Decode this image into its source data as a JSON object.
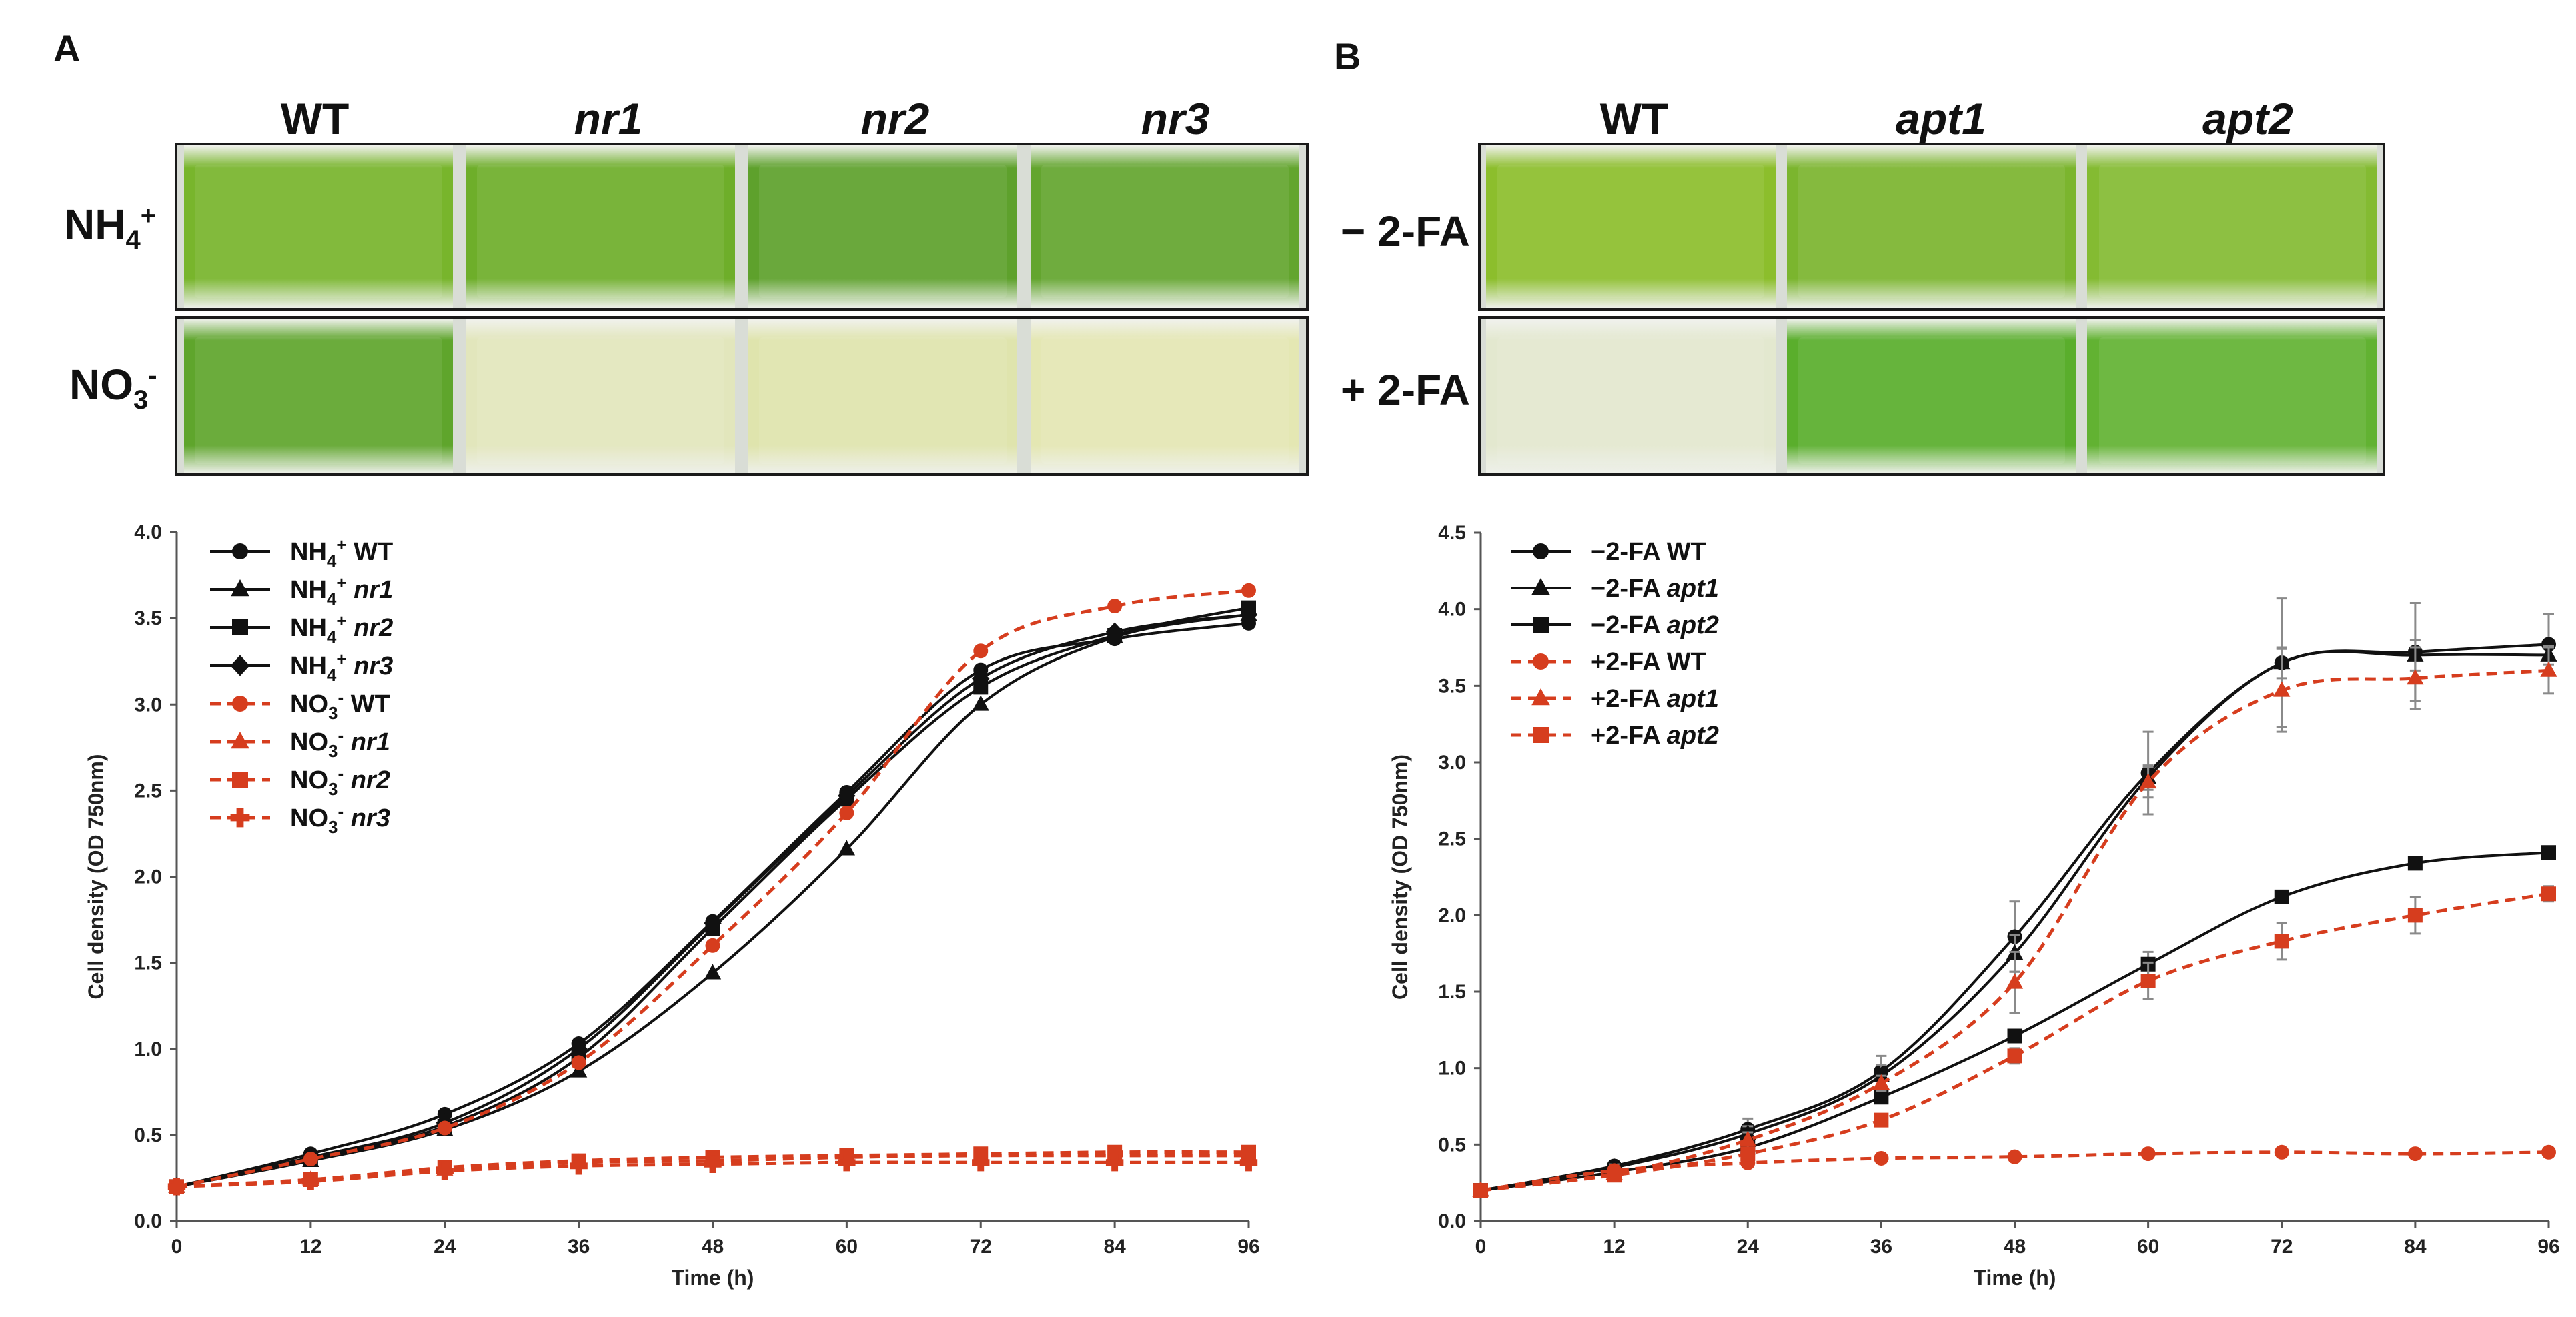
{
  "panel_a": {
    "label": "A",
    "columns": [
      "WT",
      "nr1",
      "nr2",
      "nr3"
    ],
    "rows": [
      {
        "base": "NH",
        "sub": "4",
        "sup": "+"
      },
      {
        "base": "NO",
        "sub": "3",
        "sup": "-"
      }
    ],
    "well_colors": [
      [
        "#78b52c",
        "#6eae2a",
        "#5ea12c",
        "#63a52e"
      ],
      [
        "#5fa52c",
        "#e2e6bc",
        "#dfe4ad",
        "#e4e7b3"
      ]
    ]
  },
  "panel_b": {
    "label": "B",
    "columns": [
      "WT",
      "apt1",
      "apt2"
    ],
    "rows": [
      "− 2-FA",
      "+ 2-FA"
    ],
    "well_colors": [
      [
        "#8cbe2c",
        "#7bb52e",
        "#84bb32"
      ],
      [
        "#e3e8cf",
        "#5aae2c",
        "#62b232"
      ]
    ]
  },
  "chart_data": [
    {
      "type": "line",
      "panel": "A",
      "xlabel": "Time (h)",
      "ylabel": "Cell density (OD 750nm)",
      "xlim": [
        0,
        96
      ],
      "ylim": [
        0,
        4.0
      ],
      "xticks": [
        "0",
        "12",
        "24",
        "36",
        "48",
        "60",
        "72",
        "84",
        "96"
      ],
      "yticks": [
        "0.0",
        "0.5",
        "1.0",
        "1.5",
        "2.0",
        "2.5",
        "3.0",
        "3.5",
        "4.0"
      ],
      "x": [
        0,
        12,
        24,
        36,
        48,
        60,
        72,
        84,
        96
      ],
      "legend": "top-left",
      "series": [
        {
          "name": "NH4+ WT",
          "prefix": "NH",
          "sub": "4",
          "sup": "+",
          "strain": "WT",
          "italic": false,
          "marker": "circle",
          "color": "#111111",
          "dashed": false,
          "values": [
            0.2,
            0.39,
            0.62,
            1.03,
            1.74,
            2.49,
            3.2,
            3.38,
            3.47
          ]
        },
        {
          "name": "NH4+ nr1",
          "prefix": "NH",
          "sub": "4",
          "sup": "+",
          "strain": "nr1",
          "italic": true,
          "marker": "triangle",
          "color": "#111111",
          "dashed": false,
          "values": [
            0.2,
            0.35,
            0.53,
            0.87,
            1.44,
            2.16,
            3.0,
            3.39,
            3.52
          ]
        },
        {
          "name": "NH4+ nr2",
          "prefix": "NH",
          "sub": "4",
          "sup": "+",
          "strain": "nr2",
          "italic": true,
          "marker": "square",
          "color": "#111111",
          "dashed": false,
          "values": [
            0.2,
            0.36,
            0.55,
            0.95,
            1.7,
            2.45,
            3.1,
            3.4,
            3.56
          ]
        },
        {
          "name": "NH4+ nr3",
          "prefix": "NH",
          "sub": "4",
          "sup": "+",
          "strain": "nr3",
          "italic": true,
          "marker": "diamond",
          "color": "#111111",
          "dashed": false,
          "values": [
            0.2,
            0.37,
            0.57,
            1.0,
            1.73,
            2.47,
            3.15,
            3.42,
            3.52
          ]
        },
        {
          "name": "NO3- WT",
          "prefix": "NO",
          "sub": "3",
          "sup": "-",
          "strain": "WT",
          "italic": false,
          "marker": "circle",
          "color": "#d63d1e",
          "dashed": true,
          "values": [
            0.2,
            0.36,
            0.54,
            0.92,
            1.6,
            2.37,
            3.31,
            3.57,
            3.66
          ]
        },
        {
          "name": "NO3- nr1",
          "prefix": "NO",
          "sub": "3",
          "sup": "-",
          "strain": "nr1",
          "italic": true,
          "marker": "triangle",
          "color": "#d63d1e",
          "dashed": true,
          "values": [
            0.2,
            0.24,
            0.3,
            0.34,
            0.35,
            0.37,
            0.38,
            0.38,
            0.38
          ]
        },
        {
          "name": "NO3- nr2",
          "prefix": "NO",
          "sub": "3",
          "sup": "-",
          "strain": "nr2",
          "italic": true,
          "marker": "square",
          "color": "#d63d1e",
          "dashed": true,
          "values": [
            0.2,
            0.24,
            0.31,
            0.35,
            0.37,
            0.38,
            0.39,
            0.4,
            0.4
          ]
        },
        {
          "name": "NO3- nr3",
          "prefix": "NO",
          "sub": "3",
          "sup": "-",
          "strain": "nr3",
          "italic": true,
          "marker": "cross",
          "color": "#d63d1e",
          "dashed": true,
          "values": [
            0.2,
            0.23,
            0.29,
            0.32,
            0.33,
            0.34,
            0.34,
            0.34,
            0.34
          ]
        }
      ]
    },
    {
      "type": "line",
      "panel": "B",
      "xlabel": "Time (h)",
      "ylabel": "Cell density (OD 750nm)",
      "xlim": [
        0,
        96
      ],
      "ylim": [
        0,
        4.5
      ],
      "xticks": [
        "0",
        "12",
        "24",
        "36",
        "48",
        "60",
        "72",
        "84",
        "96"
      ],
      "yticks": [
        "0.0",
        "0.5",
        "1.0",
        "1.5",
        "2.0",
        "2.5",
        "3.0",
        "3.5",
        "4.0",
        "4.5"
      ],
      "x": [
        0,
        12,
        24,
        36,
        48,
        60,
        72,
        84,
        96
      ],
      "legend": "top-left",
      "series": [
        {
          "name": "−2-FA WT",
          "prefix": "−2-FA",
          "strain": "WT",
          "italic": false,
          "marker": "circle",
          "color": "#111111",
          "dashed": false,
          "values": [
            0.2,
            0.36,
            0.6,
            0.98,
            1.86,
            2.93,
            3.65,
            3.72,
            3.77
          ],
          "errors": [
            0,
            0.02,
            0.07,
            0.1,
            0.23,
            0.27,
            0.42,
            0.32,
            0.2
          ]
        },
        {
          "name": "−2-FA apt1",
          "prefix": "−2-FA",
          "strain": "apt1",
          "italic": true,
          "marker": "triangle",
          "color": "#111111",
          "dashed": false,
          "values": [
            0.2,
            0.35,
            0.57,
            0.95,
            1.75,
            2.9,
            3.65,
            3.7,
            3.7
          ],
          "errors": [
            0,
            0.02,
            0.05,
            0.07,
            0.12,
            0.08,
            0.1,
            0.1,
            0.06
          ]
        },
        {
          "name": "−2-FA apt2",
          "prefix": "−2-FA",
          "strain": "apt2",
          "italic": true,
          "marker": "square",
          "color": "#111111",
          "dashed": false,
          "values": [
            0.2,
            0.32,
            0.48,
            0.81,
            1.21,
            1.68,
            2.12,
            2.34,
            2.41
          ],
          "errors": [
            0,
            0.02,
            0.03,
            0.04,
            0.04,
            0.08,
            0.04,
            0.04,
            0.04
          ]
        },
        {
          "name": "+2-FA WT",
          "prefix": "+2-FA",
          "strain": "WT",
          "italic": false,
          "marker": "circle",
          "color": "#d63d1e",
          "dashed": true,
          "values": [
            0.2,
            0.33,
            0.38,
            0.41,
            0.42,
            0.44,
            0.45,
            0.44,
            0.45
          ],
          "errors": [
            0,
            0.01,
            0.01,
            0.01,
            0.01,
            0.01,
            0.01,
            0.01,
            0.01
          ]
        },
        {
          "name": "+2-FA apt1",
          "prefix": "+2-FA",
          "strain": "apt1",
          "italic": true,
          "marker": "triangle",
          "color": "#d63d1e",
          "dashed": true,
          "values": [
            0.2,
            0.31,
            0.53,
            0.9,
            1.56,
            2.87,
            3.47,
            3.55,
            3.6
          ],
          "errors": [
            0,
            0.02,
            0.05,
            0.05,
            0.2,
            0.1,
            0.27,
            0.2,
            0.15
          ]
        },
        {
          "name": "+2-FA apt2",
          "prefix": "+2-FA",
          "strain": "apt2",
          "italic": true,
          "marker": "square",
          "color": "#d63d1e",
          "dashed": true,
          "values": [
            0.2,
            0.3,
            0.44,
            0.66,
            1.08,
            1.57,
            1.83,
            2.0,
            2.14
          ],
          "errors": [
            0,
            0.02,
            0.03,
            0.04,
            0.05,
            0.12,
            0.12,
            0.12,
            0.05
          ]
        }
      ]
    }
  ]
}
